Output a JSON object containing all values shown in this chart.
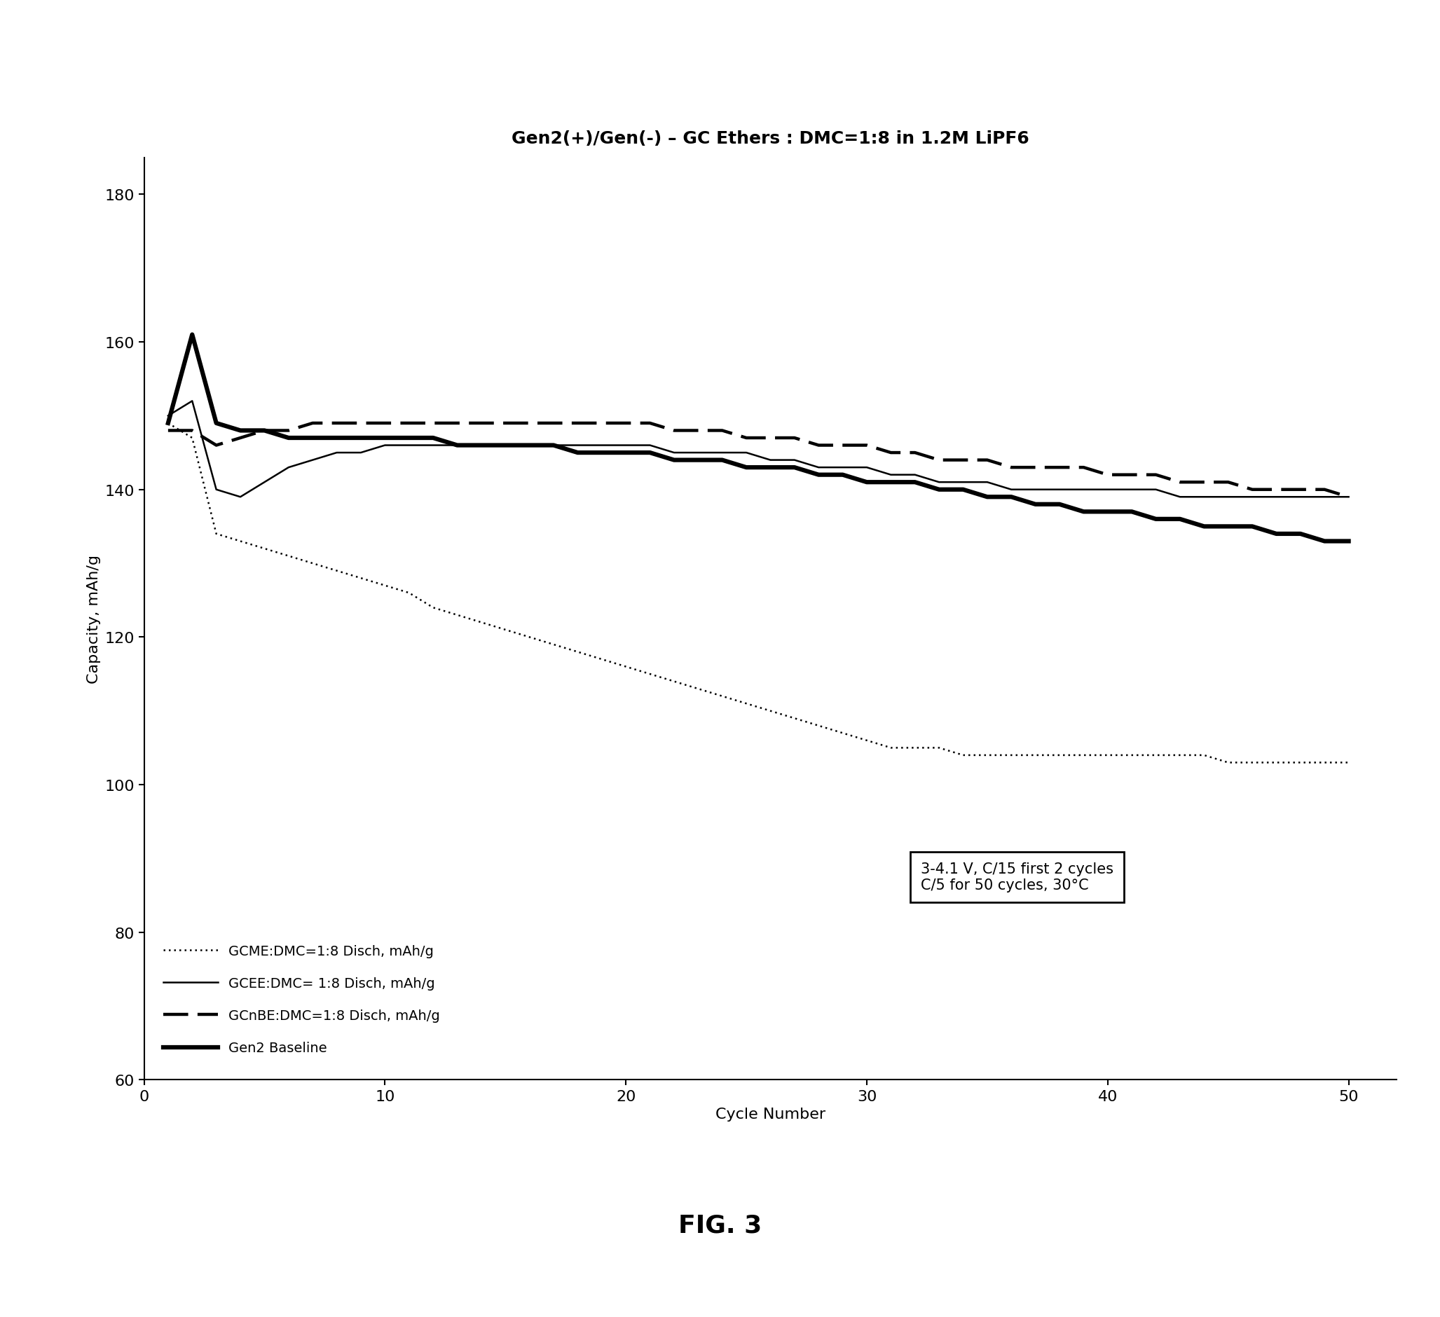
{
  "title": "Gen2(+)/Gen(-) – GC Ethers : DMC=1:8 in 1.2M LiPF6",
  "xlabel": "Cycle Number",
  "ylabel": "Capacity, mAh/g",
  "xlim": [
    0,
    52
  ],
  "ylim": [
    60,
    185
  ],
  "yticks": [
    60,
    80,
    100,
    120,
    140,
    160,
    180
  ],
  "xticks": [
    0,
    10,
    20,
    30,
    40,
    50
  ],
  "fig_caption": "FIG. 3",
  "annotation_text": "3-4.1 V, C/15 first 2 cycles\nC/5 for 50 cycles, 30°C",
  "series": {
    "GCME": {
      "label": "GCME:DMC=1:8 Disch, mAh/g",
      "x": [
        1,
        2,
        3,
        4,
        5,
        6,
        7,
        8,
        9,
        10,
        11,
        12,
        13,
        14,
        15,
        16,
        17,
        18,
        19,
        20,
        21,
        22,
        23,
        24,
        25,
        26,
        27,
        28,
        29,
        30,
        31,
        32,
        33,
        34,
        35,
        36,
        37,
        38,
        39,
        40,
        41,
        42,
        43,
        44,
        45,
        46,
        47,
        48,
        49,
        50
      ],
      "y": [
        149,
        147,
        134,
        133,
        132,
        131,
        130,
        129,
        128,
        127,
        126,
        124,
        123,
        122,
        121,
        120,
        119,
        118,
        117,
        116,
        115,
        114,
        113,
        112,
        111,
        110,
        109,
        108,
        107,
        106,
        105,
        105,
        105,
        104,
        104,
        104,
        104,
        104,
        104,
        104,
        104,
        104,
        104,
        104,
        103,
        103,
        103,
        103,
        103,
        103
      ]
    },
    "GCEE": {
      "label": "GCEE:DMC= 1:8 Disch, mAh/g",
      "x": [
        1,
        2,
        3,
        4,
        5,
        6,
        7,
        8,
        9,
        10,
        11,
        12,
        13,
        14,
        15,
        16,
        17,
        18,
        19,
        20,
        21,
        22,
        23,
        24,
        25,
        26,
        27,
        28,
        29,
        30,
        31,
        32,
        33,
        34,
        35,
        36,
        37,
        38,
        39,
        40,
        41,
        42,
        43,
        44,
        45,
        46,
        47,
        48,
        49,
        50
      ],
      "y": [
        150,
        152,
        140,
        139,
        141,
        143,
        144,
        145,
        145,
        146,
        146,
        146,
        146,
        146,
        146,
        146,
        146,
        146,
        146,
        146,
        146,
        145,
        145,
        145,
        145,
        144,
        144,
        143,
        143,
        143,
        142,
        142,
        141,
        141,
        141,
        140,
        140,
        140,
        140,
        140,
        140,
        140,
        139,
        139,
        139,
        139,
        139,
        139,
        139,
        139
      ]
    },
    "GCnBE": {
      "label": "GCnBE:DMC=1:8 Disch, mAh/g",
      "x": [
        1,
        2,
        3,
        4,
        5,
        6,
        7,
        8,
        9,
        10,
        11,
        12,
        13,
        14,
        15,
        16,
        17,
        18,
        19,
        20,
        21,
        22,
        23,
        24,
        25,
        26,
        27,
        28,
        29,
        30,
        31,
        32,
        33,
        34,
        35,
        36,
        37,
        38,
        39,
        40,
        41,
        42,
        43,
        44,
        45,
        46,
        47,
        48,
        49,
        50
      ],
      "y": [
        148,
        148,
        146,
        147,
        148,
        148,
        149,
        149,
        149,
        149,
        149,
        149,
        149,
        149,
        149,
        149,
        149,
        149,
        149,
        149,
        149,
        148,
        148,
        148,
        147,
        147,
        147,
        146,
        146,
        146,
        145,
        145,
        144,
        144,
        144,
        143,
        143,
        143,
        143,
        142,
        142,
        142,
        141,
        141,
        141,
        140,
        140,
        140,
        140,
        139
      ]
    },
    "Gen2": {
      "label": "Gen2 Baseline",
      "x": [
        1,
        2,
        3,
        4,
        5,
        6,
        7,
        8,
        9,
        10,
        11,
        12,
        13,
        14,
        15,
        16,
        17,
        18,
        19,
        20,
        21,
        22,
        23,
        24,
        25,
        26,
        27,
        28,
        29,
        30,
        31,
        32,
        33,
        34,
        35,
        36,
        37,
        38,
        39,
        40,
        41,
        42,
        43,
        44,
        45,
        46,
        47,
        48,
        49,
        50
      ],
      "y": [
        149,
        161,
        149,
        148,
        148,
        147,
        147,
        147,
        147,
        147,
        147,
        147,
        146,
        146,
        146,
        146,
        146,
        145,
        145,
        145,
        145,
        144,
        144,
        144,
        143,
        143,
        143,
        142,
        142,
        141,
        141,
        141,
        140,
        140,
        139,
        139,
        138,
        138,
        137,
        137,
        137,
        136,
        136,
        135,
        135,
        135,
        134,
        134,
        133,
        133
      ]
    }
  },
  "background_color": "#ffffff",
  "title_fontsize": 18,
  "axis_label_fontsize": 16,
  "tick_fontsize": 16,
  "legend_fontsize": 14,
  "annotation_fontsize": 15
}
